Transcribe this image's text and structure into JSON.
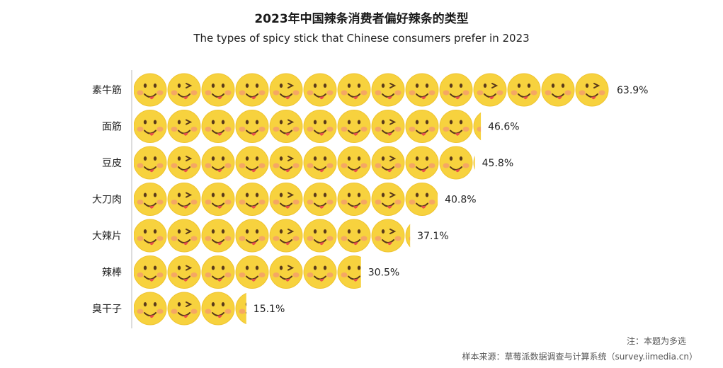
{
  "title": "2023年中国辣条消费者偏好辣条的类型",
  "subtitle": "The types of spicy stick that Chinese consumers prefer in 2023",
  "note": "注：本题为多选",
  "source": "样本来源：草莓派数据调查与计算系统（survey.iimedia.cn）",
  "colors": {
    "face": "#f7d23e",
    "face_edge": "#efc430",
    "cheek": "#f4a06a",
    "feature": "#5a3a1a",
    "tongue": "#e8504a",
    "axis": "#bbbbbb"
  },
  "icon": "smiley-face-icon",
  "chart_data": {
    "type": "bar",
    "categories": [
      "素牛筋",
      "面筋",
      "豆皮",
      "大刀肉",
      "大辣片",
      "辣棒",
      "臭干子"
    ],
    "values": [
      63.9,
      46.6,
      45.8,
      40.8,
      37.1,
      30.5,
      15.1
    ],
    "value_labels": [
      "63.9%",
      "46.6%",
      "45.8%",
      "40.8%",
      "37.1%",
      "30.5%",
      "15.1%"
    ],
    "unit": "%",
    "orientation": "horizontal",
    "grid": false,
    "xlim": [
      0,
      64
    ]
  }
}
